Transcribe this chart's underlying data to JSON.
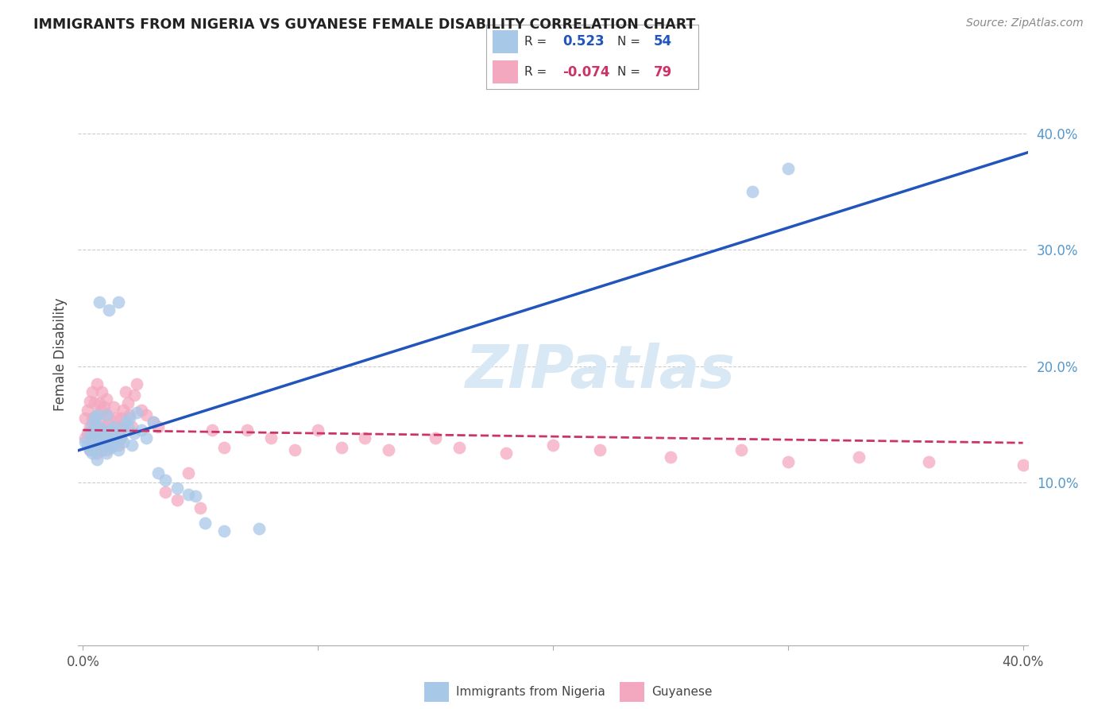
{
  "title": "IMMIGRANTS FROM NIGERIA VS GUYANESE FEMALE DISABILITY CORRELATION CHART",
  "source": "Source: ZipAtlas.com",
  "ylabel": "Female Disability",
  "xlim": [
    -0.002,
    0.402
  ],
  "ylim": [
    -0.04,
    0.46
  ],
  "yticks": [
    0.1,
    0.2,
    0.3,
    0.4
  ],
  "xticks": [
    0.0,
    0.1,
    0.2,
    0.3,
    0.4
  ],
  "ytick_labels_right": [
    "10.0%",
    "20.0%",
    "30.0%",
    "40.0%"
  ],
  "nigeria_color": "#a8c8e8",
  "guyanese_color": "#f4a8c0",
  "nigeria_line_color": "#2255bb",
  "guyanese_line_color": "#cc3366",
  "watermark": "ZIPatlas",
  "watermark_color": "#d8e8f4",
  "nigeria_R": 0.523,
  "nigeria_N": 54,
  "guyanese_R": -0.074,
  "guyanese_N": 79,
  "nigeria_x": [
    0.001,
    0.002,
    0.003,
    0.003,
    0.004,
    0.004,
    0.004,
    0.005,
    0.005,
    0.005,
    0.006,
    0.006,
    0.006,
    0.007,
    0.007,
    0.007,
    0.008,
    0.008,
    0.009,
    0.009,
    0.01,
    0.01,
    0.01,
    0.011,
    0.011,
    0.012,
    0.012,
    0.013,
    0.013,
    0.014,
    0.015,
    0.015,
    0.016,
    0.016,
    0.017,
    0.018,
    0.019,
    0.02,
    0.021,
    0.022,
    0.023,
    0.025,
    0.027,
    0.03,
    0.032,
    0.035,
    0.04,
    0.045,
    0.048,
    0.052,
    0.06,
    0.075,
    0.285,
    0.3
  ],
  "nigeria_y": [
    0.135,
    0.132,
    0.128,
    0.142,
    0.138,
    0.125,
    0.15,
    0.13,
    0.145,
    0.155,
    0.12,
    0.14,
    0.158,
    0.135,
    0.148,
    0.255,
    0.128,
    0.138,
    0.132,
    0.145,
    0.125,
    0.142,
    0.158,
    0.135,
    0.248,
    0.13,
    0.145,
    0.132,
    0.148,
    0.138,
    0.255,
    0.128,
    0.138,
    0.145,
    0.135,
    0.152,
    0.148,
    0.155,
    0.132,
    0.142,
    0.16,
    0.145,
    0.138,
    0.152,
    0.108,
    0.102,
    0.095,
    0.09,
    0.088,
    0.065,
    0.058,
    0.06,
    0.35,
    0.37
  ],
  "guyanese_x": [
    0.001,
    0.001,
    0.002,
    0.002,
    0.003,
    0.003,
    0.003,
    0.004,
    0.004,
    0.004,
    0.005,
    0.005,
    0.005,
    0.006,
    0.006,
    0.006,
    0.006,
    0.007,
    0.007,
    0.007,
    0.008,
    0.008,
    0.008,
    0.008,
    0.009,
    0.009,
    0.009,
    0.01,
    0.01,
    0.01,
    0.01,
    0.011,
    0.011,
    0.012,
    0.012,
    0.013,
    0.013,
    0.014,
    0.014,
    0.015,
    0.015,
    0.016,
    0.016,
    0.017,
    0.017,
    0.018,
    0.019,
    0.02,
    0.021,
    0.022,
    0.023,
    0.025,
    0.027,
    0.03,
    0.032,
    0.035,
    0.04,
    0.045,
    0.05,
    0.055,
    0.06,
    0.07,
    0.08,
    0.09,
    0.1,
    0.11,
    0.12,
    0.13,
    0.15,
    0.16,
    0.18,
    0.2,
    0.22,
    0.25,
    0.28,
    0.3,
    0.33,
    0.36,
    0.4
  ],
  "guyanese_y": [
    0.138,
    0.155,
    0.142,
    0.162,
    0.128,
    0.148,
    0.17,
    0.135,
    0.155,
    0.178,
    0.13,
    0.148,
    0.168,
    0.125,
    0.142,
    0.158,
    0.185,
    0.132,
    0.15,
    0.168,
    0.128,
    0.145,
    0.162,
    0.178,
    0.132,
    0.148,
    0.165,
    0.128,
    0.142,
    0.158,
    0.172,
    0.135,
    0.155,
    0.132,
    0.148,
    0.165,
    0.142,
    0.135,
    0.155,
    0.132,
    0.148,
    0.138,
    0.155,
    0.148,
    0.162,
    0.178,
    0.168,
    0.158,
    0.148,
    0.175,
    0.185,
    0.162,
    0.158,
    0.152,
    0.148,
    0.092,
    0.085,
    0.108,
    0.078,
    0.145,
    0.13,
    0.145,
    0.138,
    0.128,
    0.145,
    0.13,
    0.138,
    0.128,
    0.138,
    0.13,
    0.125,
    0.132,
    0.128,
    0.122,
    0.128,
    0.118,
    0.122,
    0.118,
    0.115
  ]
}
